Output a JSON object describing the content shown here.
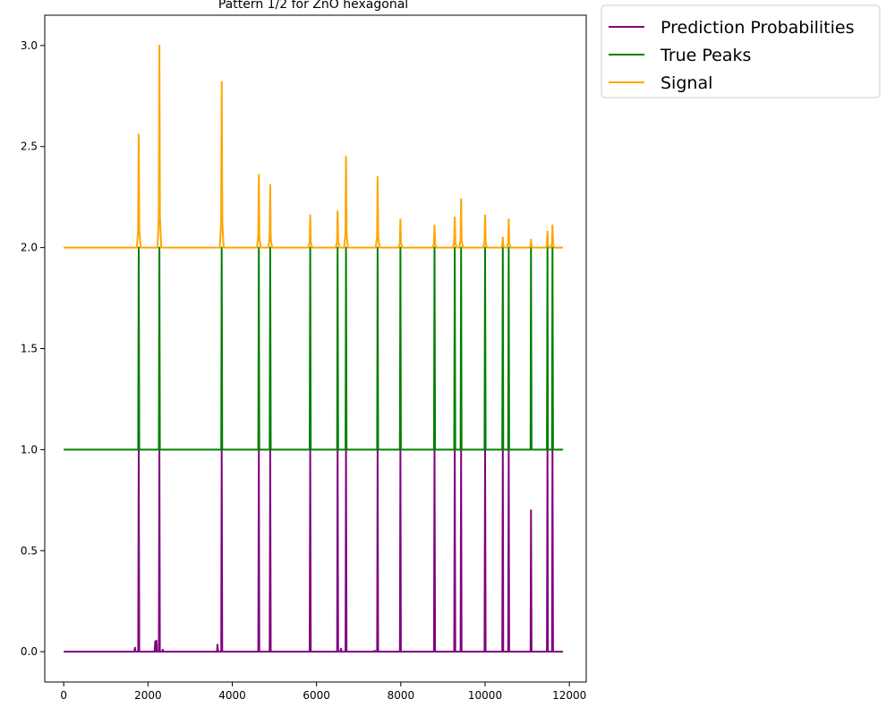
{
  "chart_data": {
    "type": "line",
    "title": "Pattern 1/2 for ZnO hexagonal",
    "xlabel": "",
    "ylabel": "",
    "xlim": [
      -450,
      12400
    ],
    "ylim": [
      -0.15,
      3.15
    ],
    "x_ticks": [
      0,
      2000,
      4000,
      6000,
      8000,
      10000,
      12000
    ],
    "x_tick_labels": [
      "0",
      "2000",
      "4000",
      "6000",
      "8000",
      "10000",
      "12000"
    ],
    "y_ticks": [
      0.0,
      0.5,
      1.0,
      1.5,
      2.0,
      2.5,
      3.0
    ],
    "y_tick_labels": [
      "0.0",
      "0.5",
      "1.0",
      "1.5",
      "2.0",
      "2.5",
      "3.0"
    ],
    "x_range": [
      0,
      11850
    ],
    "grid": false,
    "legend_position": "outside-top-right",
    "peak_positions": [
      1780,
      2270,
      3750,
      4630,
      4900,
      5850,
      6500,
      6700,
      7450,
      7990,
      8800,
      9280,
      9430,
      10000,
      10420,
      10560,
      11090,
      11480,
      11600
    ],
    "series": [
      {
        "name": "Prediction Probabilities",
        "color": "#800080",
        "baseline": 0.0,
        "peak_values": [
          1.0,
          1.0,
          1.0,
          1.0,
          1.0,
          1.0,
          1.0,
          1.0,
          1.0,
          1.0,
          1.0,
          1.0,
          1.0,
          1.0,
          1.0,
          1.0,
          0.7,
          1.0,
          1.0
        ],
        "minor_peaks": [
          {
            "x": 1690,
            "y": 0.02
          },
          {
            "x": 2170,
            "y": 0.05
          },
          {
            "x": 2200,
            "y": 0.055
          },
          {
            "x": 2350,
            "y": 0.01
          },
          {
            "x": 3650,
            "y": 0.035
          },
          {
            "x": 6580,
            "y": 0.015
          },
          {
            "x": 7380,
            "y": 0.005
          }
        ]
      },
      {
        "name": "True Peaks",
        "color": "#008000",
        "baseline": 1.0,
        "peak_values": [
          2.0,
          2.0,
          2.0,
          2.0,
          2.0,
          2.0,
          2.0,
          2.0,
          2.0,
          2.0,
          2.0,
          2.0,
          2.0,
          2.0,
          2.0,
          2.0,
          2.0,
          2.0,
          2.0
        ]
      },
      {
        "name": "Signal",
        "color": "#FFA500",
        "baseline": 2.0,
        "peak_values": [
          2.56,
          3.0,
          2.82,
          2.36,
          2.31,
          2.16,
          2.18,
          2.45,
          2.35,
          2.14,
          2.11,
          2.15,
          2.24,
          2.16,
          2.05,
          2.14,
          2.04,
          2.08,
          2.11
        ]
      }
    ]
  }
}
